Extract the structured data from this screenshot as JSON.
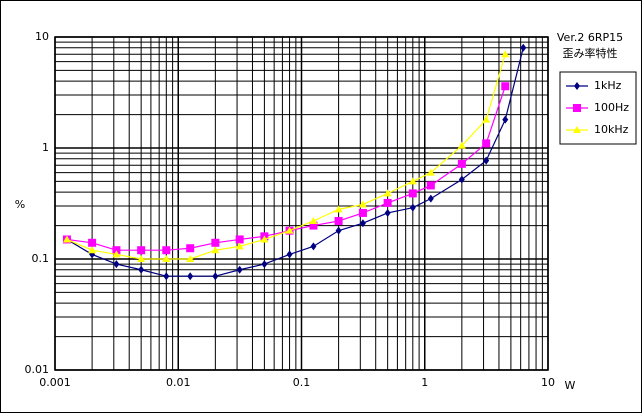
{
  "chart_data": {
    "type": "line",
    "annotations": [
      "Ver.2  6RP15",
      "歪み率特性"
    ],
    "x_label": "W",
    "y_label": "%",
    "x": [
      0.00125,
      0.002,
      0.00315,
      0.005,
      0.008,
      0.0125,
      0.02,
      0.0315,
      0.05,
      0.08,
      0.125,
      0.2,
      0.315,
      0.5,
      0.8,
      1.12,
      2,
      3.15,
      4.5,
      6.3
    ],
    "series": [
      {
        "name": "1kHz",
        "color": "#000080",
        "marker": "diamond",
        "values": [
          0.15,
          0.11,
          0.09,
          0.08,
          0.07,
          0.07,
          0.07,
          0.08,
          0.09,
          0.11,
          0.13,
          0.18,
          0.21,
          0.26,
          0.29,
          0.35,
          0.52,
          0.77,
          1.8,
          8
        ]
      },
      {
        "name": "100Hz",
        "color": "#ff00ff",
        "marker": "square",
        "values": [
          0.15,
          0.14,
          0.12,
          0.12,
          0.12,
          0.125,
          0.14,
          0.15,
          0.16,
          0.18,
          0.2,
          0.22,
          0.26,
          0.32,
          0.39,
          0.46,
          0.72,
          1.1,
          3.6,
          null
        ]
      },
      {
        "name": "10kHz",
        "color": "#ffff00",
        "marker": "triangle",
        "values": [
          0.15,
          0.12,
          0.11,
          0.1,
          0.1,
          0.1,
          0.12,
          0.13,
          0.15,
          0.18,
          0.22,
          0.28,
          0.31,
          0.39,
          0.5,
          0.6,
          1.05,
          1.8,
          7,
          null
        ]
      }
    ],
    "xlim": [
      0.001,
      10
    ],
    "ylim": [
      0.01,
      10
    ],
    "xticks": [
      0.001,
      0.01,
      0.1,
      1,
      10
    ],
    "yticks": [
      0.01,
      0.1,
      1,
      10
    ],
    "xlog": true,
    "ylog": true,
    "grid": true,
    "minor_grid": true,
    "legend": "right"
  }
}
